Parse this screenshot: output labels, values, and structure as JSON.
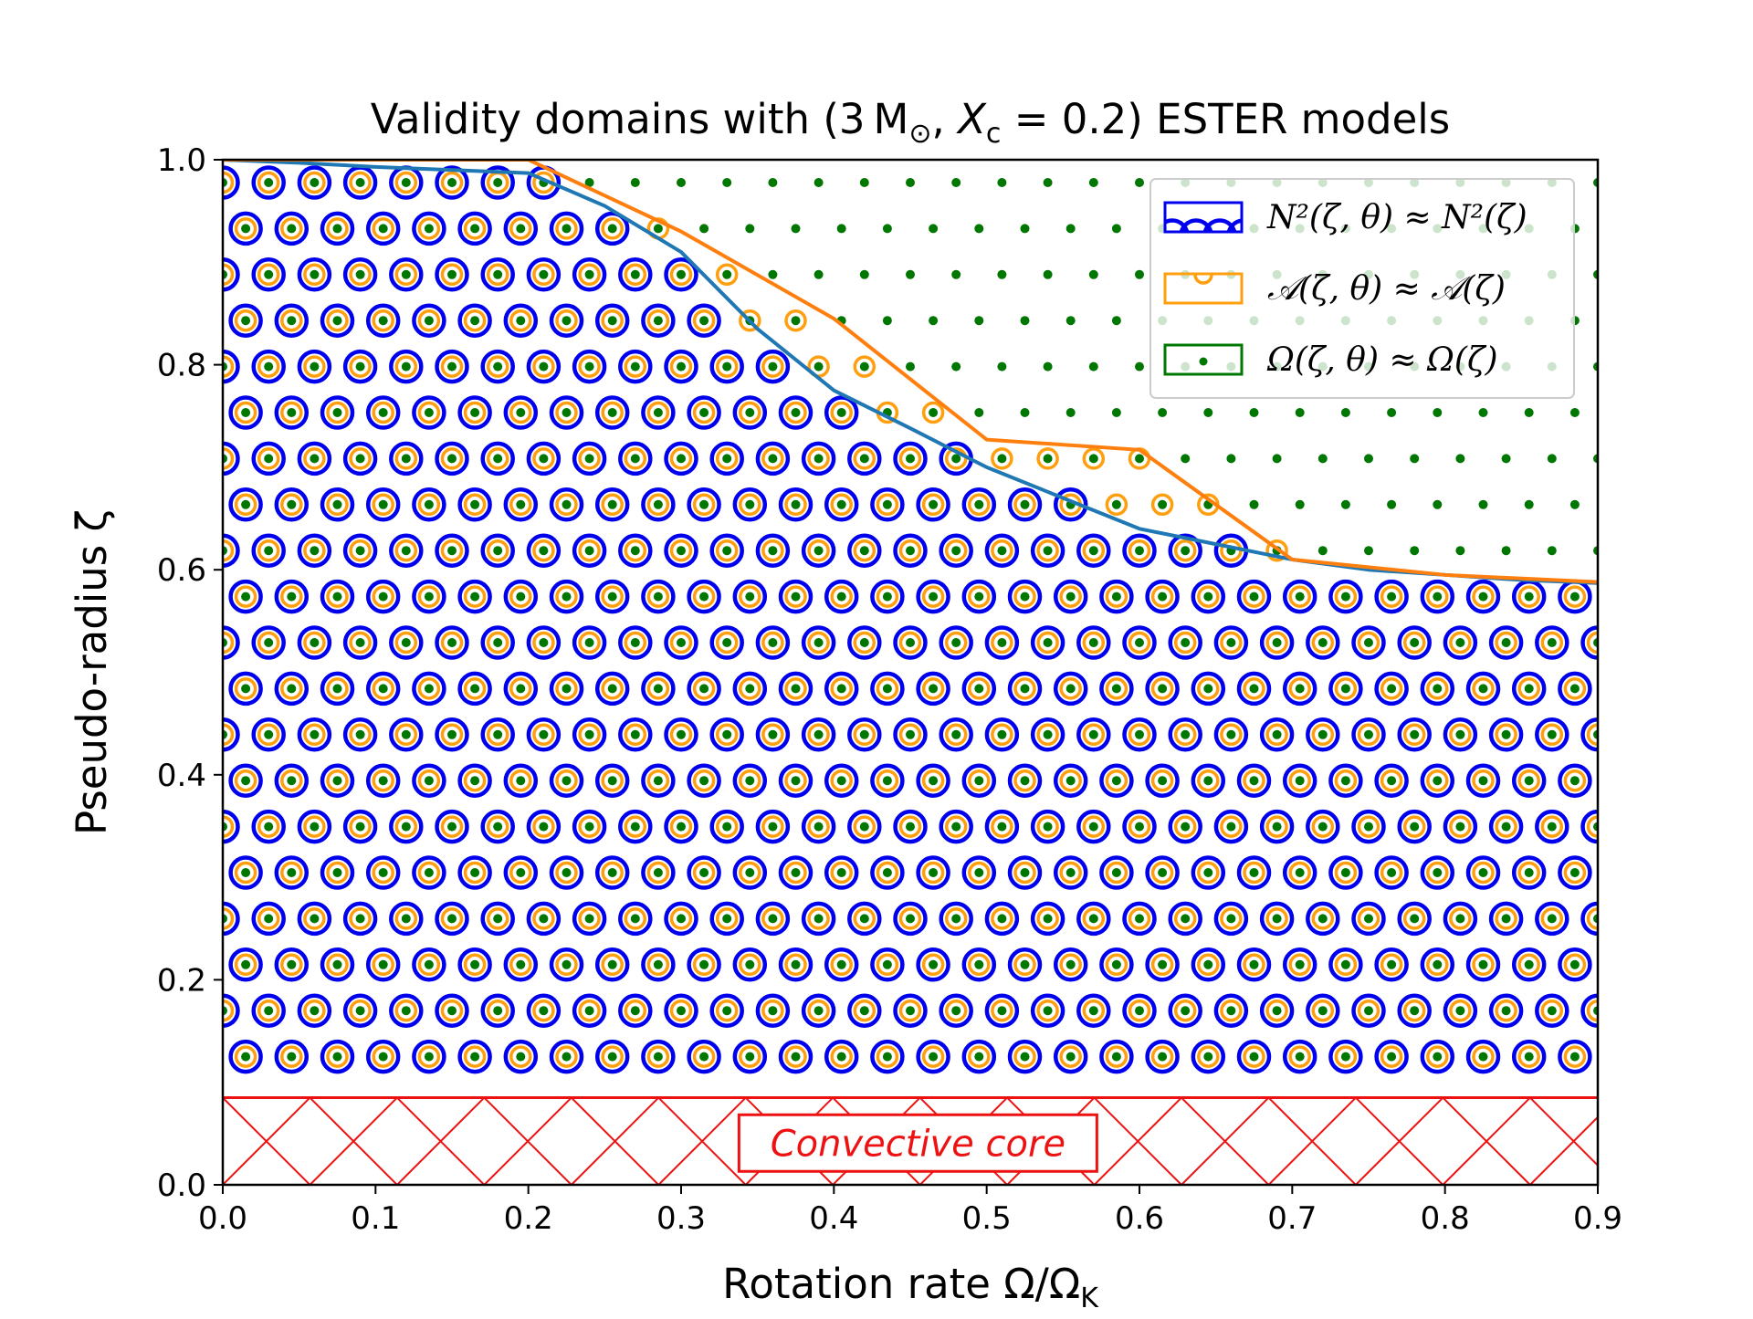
{
  "chart_data": {
    "type": "area",
    "title": "Validity domains with (3 M⊙, Xc = 0.2) ESTER models",
    "title_parts": {
      "prefix": "Validity domains with (3",
      "mass_unit": "M",
      "sun_symbol": "⊙",
      "sep": ", ",
      "var": "X",
      "var_sub": "c",
      "eq": " = 0.2) ESTER models"
    },
    "xlabel": "Rotation rate Ω/ΩK",
    "xlabel_parts": {
      "main": "Rotation rate Ω/Ω",
      "sub": "K"
    },
    "ylabel": "Pseudo-radius ζ",
    "xlim": [
      0.0,
      0.9
    ],
    "ylim": [
      0.0,
      1.0
    ],
    "x_ticks": [
      0.0,
      0.1,
      0.2,
      0.3,
      0.4,
      0.5,
      0.6,
      0.7,
      0.8,
      0.9
    ],
    "x_tick_labels": [
      "0.0",
      "0.1",
      "0.2",
      "0.3",
      "0.4",
      "0.5",
      "0.6",
      "0.7",
      "0.8",
      "0.9"
    ],
    "y_ticks": [
      0.0,
      0.2,
      0.4,
      0.6,
      0.8,
      1.0
    ],
    "y_tick_labels": [
      "0.0",
      "0.2",
      "0.4",
      "0.6",
      "0.8",
      "1.0"
    ],
    "grid": false,
    "legend_position": "top-right",
    "series": [
      {
        "name": "N²(ζ, θ) ≈ N²(ζ)",
        "color": "#1f77b4",
        "hatch": "blue-rings",
        "hatch_color": "#0000ee",
        "x": [
          0.0,
          0.05,
          0.1,
          0.15,
          0.2,
          0.25,
          0.3,
          0.35,
          0.4,
          0.45,
          0.5,
          0.55,
          0.6,
          0.65,
          0.7,
          0.75,
          0.8,
          0.85,
          0.9
        ],
        "y": [
          1.0,
          0.997,
          0.993,
          0.99,
          0.987,
          0.955,
          0.91,
          0.835,
          0.775,
          0.738,
          0.7,
          0.67,
          0.64,
          0.625,
          0.61,
          0.6,
          0.595,
          0.59,
          0.587
        ]
      },
      {
        "name": "ᵉ(ζ, θ) ≈ ᵉ(ζ)",
        "label_left": "𝒜(ζ, θ) ≈ 𝒜(ζ)",
        "color": "#ff7f0e",
        "hatch": "orange-rings",
        "hatch_color": "#ff9f0e",
        "x": [
          0.0,
          0.2,
          0.3,
          0.4,
          0.5,
          0.6,
          0.7,
          0.8,
          0.9
        ],
        "y": [
          1.0,
          1.0,
          0.93,
          0.845,
          0.727,
          0.717,
          0.61,
          0.595,
          0.588
        ]
      },
      {
        "name": "Ω(ζ, θ) ≈ Ω(ζ)",
        "color": "#007700",
        "hatch": "green-dots",
        "hatch_color": "#007700",
        "x": [
          0.0,
          0.9
        ],
        "y": [
          1.0,
          1.0
        ]
      }
    ],
    "convective_core": {
      "label": "Convective core",
      "y_top": 0.085,
      "color": "#ee1111"
    }
  },
  "legend": {
    "items": [
      {
        "label": "N²(ζ, θ) ≈ N²(ζ)",
        "edge_color": "#0000ee",
        "icon": "blue-rings-patch"
      },
      {
        "label": "𝒜(ζ, θ) ≈ 𝒜(ζ)",
        "edge_color": "#ff9f0e",
        "icon": "orange-ring-patch"
      },
      {
        "label": "Ω(ζ, θ) ≈ Ω(ζ)",
        "edge_color": "#007700",
        "icon": "green-dot-patch"
      }
    ]
  }
}
